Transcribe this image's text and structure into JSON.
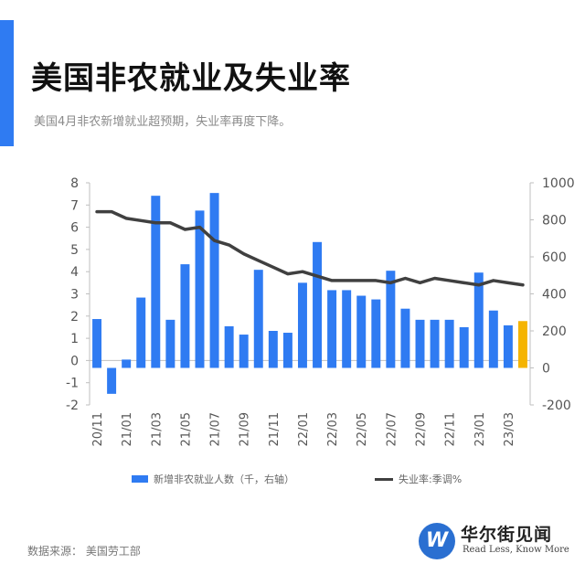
{
  "header": {
    "title": "美国非农就业及失业率",
    "subtitle": "美国4月非农新增就业超预期，失业率再度下降。"
  },
  "footer": {
    "source": "数据来源： 美国劳工部"
  },
  "logo": {
    "mark": "W",
    "name_cn": "华尔街见闻",
    "tagline": "Read Less, Know More"
  },
  "colors": {
    "accent": "#2f7bf2",
    "bar": "#2f7bf2",
    "bar_highlight": "#f5b400",
    "line": "#404040"
  },
  "chart_data": {
    "type": "bar",
    "categories": [
      "20/11",
      "20/12",
      "21/01",
      "21/02",
      "21/03",
      "21/04",
      "21/05",
      "21/06",
      "21/07",
      "21/08",
      "21/09",
      "21/10",
      "21/11",
      "21/12",
      "22/01",
      "22/02",
      "22/03",
      "22/04",
      "22/05",
      "22/06",
      "22/07",
      "22/08",
      "22/09",
      "22/10",
      "22/11",
      "22/12",
      "23/01",
      "23/02",
      "23/03",
      "23/04"
    ],
    "x_tick_labels": [
      "20/11",
      "21/01",
      "21/03",
      "21/05",
      "21/07",
      "21/09",
      "21/11",
      "22/01",
      "22/03",
      "22/05",
      "22/07",
      "22/09",
      "22/11",
      "23/01",
      "23/03"
    ],
    "series": [
      {
        "name": "新增非农就业人数（千，右轴）",
        "type": "bar",
        "axis": "right",
        "values": [
          264,
          -140,
          45,
          380,
          930,
          260,
          560,
          850,
          945,
          225,
          180,
          530,
          200,
          190,
          460,
          680,
          420,
          420,
          390,
          370,
          525,
          320,
          260,
          260,
          260,
          220,
          515,
          310,
          230,
          253
        ],
        "highlight_index": 29
      },
      {
        "name": "失业率:季调%",
        "type": "line",
        "axis": "left",
        "values": [
          6.7,
          6.7,
          6.4,
          6.3,
          6.2,
          6.2,
          5.9,
          6.0,
          5.4,
          5.2,
          4.8,
          4.5,
          4.2,
          3.9,
          4.0,
          3.8,
          3.6,
          3.6,
          3.6,
          3.6,
          3.5,
          3.7,
          3.5,
          3.7,
          3.6,
          3.5,
          3.4,
          3.6,
          3.5,
          3.4
        ]
      }
    ],
    "y_left": {
      "min": -2,
      "max": 8,
      "ticks": [
        "-2",
        "-1",
        "0",
        "1",
        "2",
        "3",
        "4",
        "5",
        "6",
        "7",
        "8"
      ]
    },
    "y_right": {
      "min": -200,
      "max": 1000,
      "ticks": [
        "-200",
        "0",
        "200",
        "400",
        "600",
        "800",
        "1000"
      ]
    },
    "legend": {
      "position": "bottom"
    },
    "grid": false
  }
}
